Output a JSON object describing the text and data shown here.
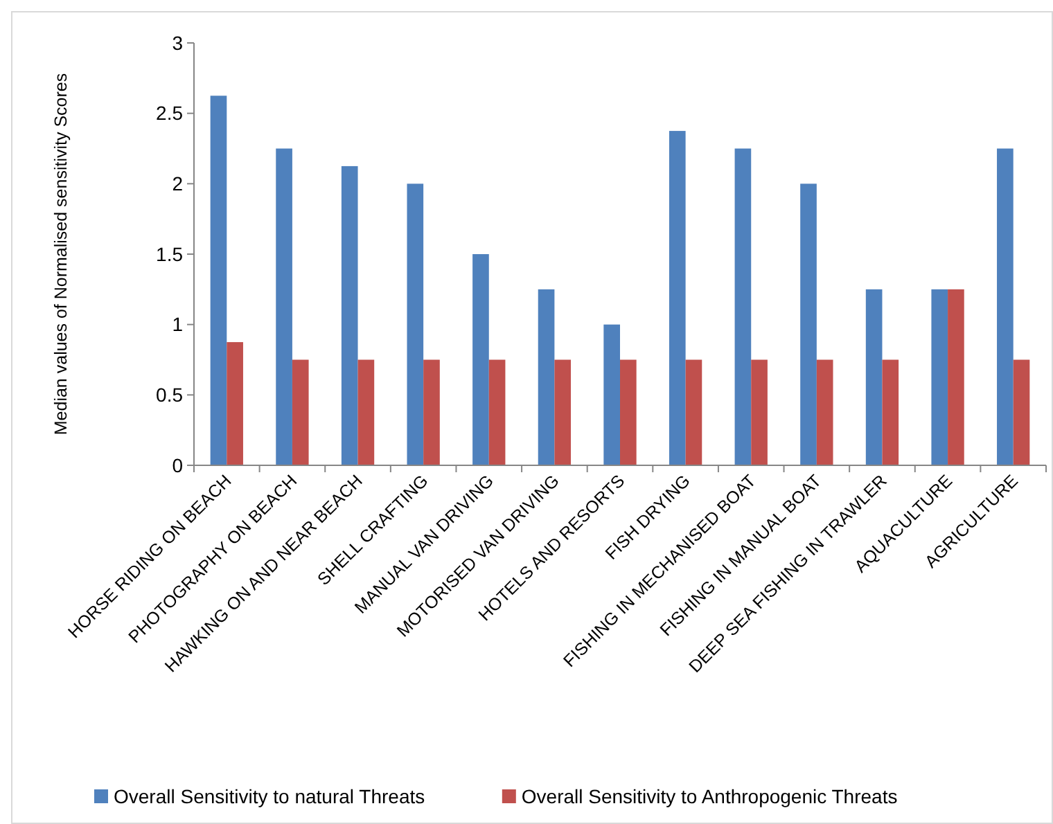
{
  "chart_data": {
    "type": "bar",
    "ylabel": "Median values of Normalised sensitivity Scores",
    "categories": [
      "HORSE RIDING ON BEACH",
      "PHOTOGRAPHY ON BEACH",
      "HAWKING ON AND NEAR BEACH",
      "SHELL CRAFTING",
      "MANUAL VAN DRIVING",
      "MOTORISED VAN DRIVING",
      "HOTELS AND RESORTS",
      "FISH DRYING",
      "FISHING IN MECHANISED BOAT",
      "FISHING IN MANUAL BOAT",
      "DEEP SEA FISHING IN TRAWLER",
      "AQUACULTURE",
      "AGRICULTURE"
    ],
    "series": [
      {
        "name": "Overall Sensitivity to natural Threats",
        "color": "#4f81bd",
        "values": [
          2.625,
          2.25,
          2.125,
          2,
          1.5,
          1.25,
          1,
          2.375,
          2.25,
          2,
          1.25,
          1.25,
          2.25
        ]
      },
      {
        "name": "Overall Sensitivity to Anthropogenic Threats",
        "color": "#c0504d",
        "values": [
          0.875,
          0.75,
          0.75,
          0.75,
          0.75,
          0.75,
          0.75,
          0.75,
          0.75,
          0.75,
          0.75,
          1.25,
          0.75
        ]
      }
    ],
    "ylim": [
      0,
      3
    ],
    "yticks": [
      0,
      0.5,
      1,
      1.5,
      2,
      2.5,
      3
    ],
    "legend": "bottom"
  }
}
